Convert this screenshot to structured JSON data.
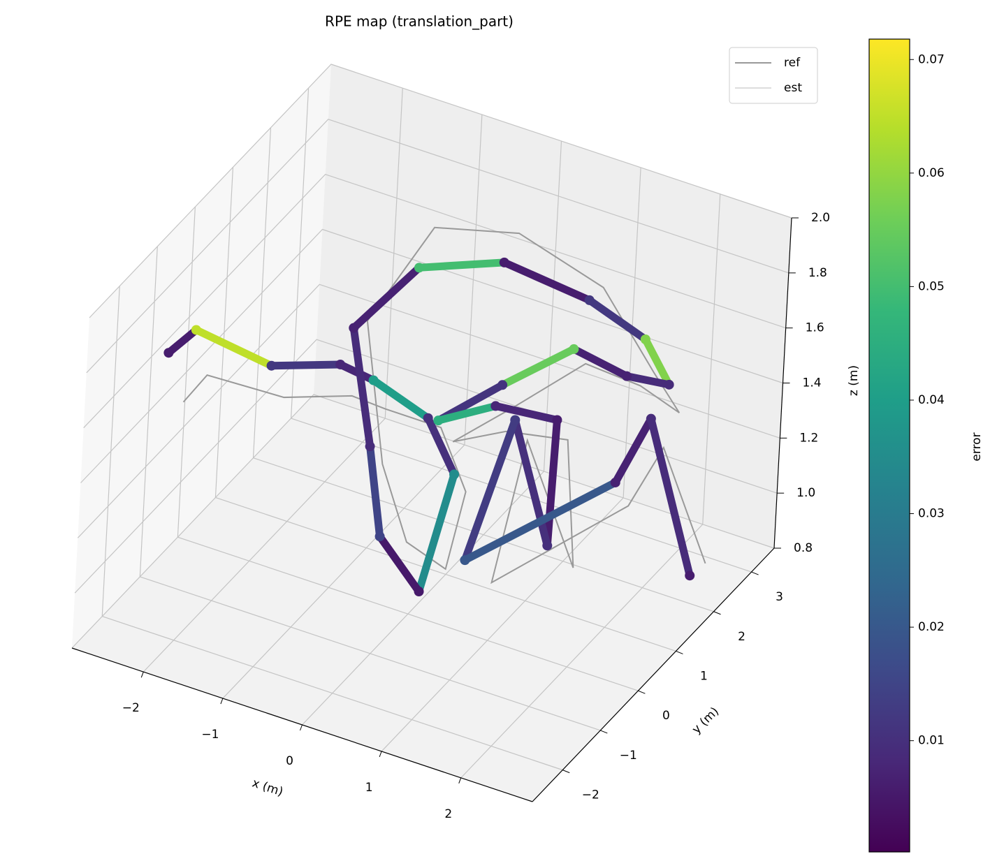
{
  "chart_data": {
    "type": "trajectory3d",
    "title": "RPE map (translation_part)",
    "xlabel": "x (m)",
    "ylabel": "y (m)",
    "zlabel": "z (m)",
    "xlim": [
      -2.9,
      2.9
    ],
    "ylim": [
      -2.8,
      3.6
    ],
    "zlim": [
      0.8,
      2.0
    ],
    "xticks": [
      {
        "value": -2,
        "label": "−2"
      },
      {
        "value": -1,
        "label": "−1"
      },
      0,
      1,
      2
    ],
    "yticks": [
      {
        "value": -2,
        "label": "−2"
      },
      {
        "value": -1,
        "label": "−1"
      },
      0,
      1,
      2,
      3
    ],
    "zticks": [
      0.8,
      {
        "value": 1,
        "label": "1.0"
      },
      1.2,
      1.4,
      1.6,
      1.8,
      {
        "value": 2,
        "label": "2.0"
      }
    ],
    "grid": true,
    "legend": "upper right",
    "series": [
      {
        "name": "ref",
        "color": "#999999",
        "x": [
          -2.3,
          -2.2,
          -1.5,
          -1.1,
          -0.9,
          -0.2,
          0.15,
          -0.05,
          -0.55,
          -0.9,
          -1.4,
          -0.85,
          0.2,
          1.5,
          2.4,
          2.3,
          1.8,
          1.55,
          0.9,
          0.4,
          1.05,
          1.6,
          1.75,
          1.1,
          0.75,
          1.95,
          2.35,
          2.5
        ],
        "y": [
          -1.4,
          -1.0,
          -0.4,
          0.6,
          1.1,
          1.1,
          1.1,
          1.1,
          1.1,
          1.1,
          1.6,
          2.1,
          2.1,
          1.6,
          1.1,
          2.1,
          2.1,
          1.1,
          0.6,
          0.1,
          0.1,
          0.6,
          0.6,
          0.6,
          0.6,
          1.6,
          1.6,
          2.6
        ],
        "z": [
          1.55,
          1.6,
          1.5,
          1.4,
          1.3,
          1.3,
          1.1,
          0.8,
          0.85,
          1.1,
          1.5,
          1.82,
          1.9,
          1.9,
          1.75,
          1.45,
          1.5,
          1.7,
          1.55,
          1.45,
          1.55,
          1.5,
          1.05,
          1.45,
          0.9,
          1.15,
          1.4,
          0.85
        ]
      },
      {
        "name": "est",
        "color": "#dddddd",
        "x": [
          -2.25,
          -2.1,
          -1.41,
          -1.0,
          -0.8,
          -0.1,
          0.26,
          -0.1,
          -0.62,
          -0.8,
          -1.3,
          -0.75,
          0.3,
          1.6,
          2.54,
          2.42,
          1.89,
          1.66,
          1.02,
          0.47,
          1.17,
          1.72,
          1.68,
          1.2,
          0.67,
          2.04,
          2.44,
          2.58
        ],
        "y": [
          -2,
          -1.6,
          -1,
          0,
          0.5,
          0.5,
          0.5,
          0.5,
          0.5,
          0.5,
          1,
          1.5,
          1.5,
          1,
          0.5,
          1.5,
          1.5,
          0.5,
          0,
          -0.5,
          -0.5,
          0,
          0,
          0,
          0,
          1,
          1,
          2
        ],
        "z": [
          1.82,
          1.86,
          1.71,
          1.61,
          1.5,
          1.43,
          1.26,
          0.8,
          0.95,
          1.26,
          1.57,
          1.77,
          1.89,
          1.95,
          1.97,
          1.65,
          1.63,
          1.85,
          1.73,
          1.62,
          1.74,
          1.67,
          1.21,
          1.62,
          1.06,
          1.33,
          1.6,
          0.9
        ],
        "errors": [
          0.006,
          0.065,
          0.012,
          0.008,
          0.04,
          0.01,
          0.035,
          0.005,
          0.015,
          0.009,
          0.007,
          0.05,
          0.006,
          0.012,
          0.058,
          0.009,
          0.007,
          0.055,
          0.011,
          0.045,
          0.008,
          0.006,
          0.01,
          0.013,
          0.02,
          0.007,
          0.009,
          0.006
        ]
      }
    ],
    "colorbar": {
      "label": "error",
      "clim": [
        0.0002,
        0.0718
      ],
      "ticks": [
        0.01,
        0.02,
        0.03,
        0.04,
        0.05,
        0.06,
        0.07
      ],
      "colormap": [
        "#440154",
        "#482878",
        "#3e4989",
        "#31688e",
        "#26828e",
        "#1f9e89",
        "#35b779",
        "#6ece58",
        "#b5de2b",
        "#fde725"
      ]
    }
  }
}
